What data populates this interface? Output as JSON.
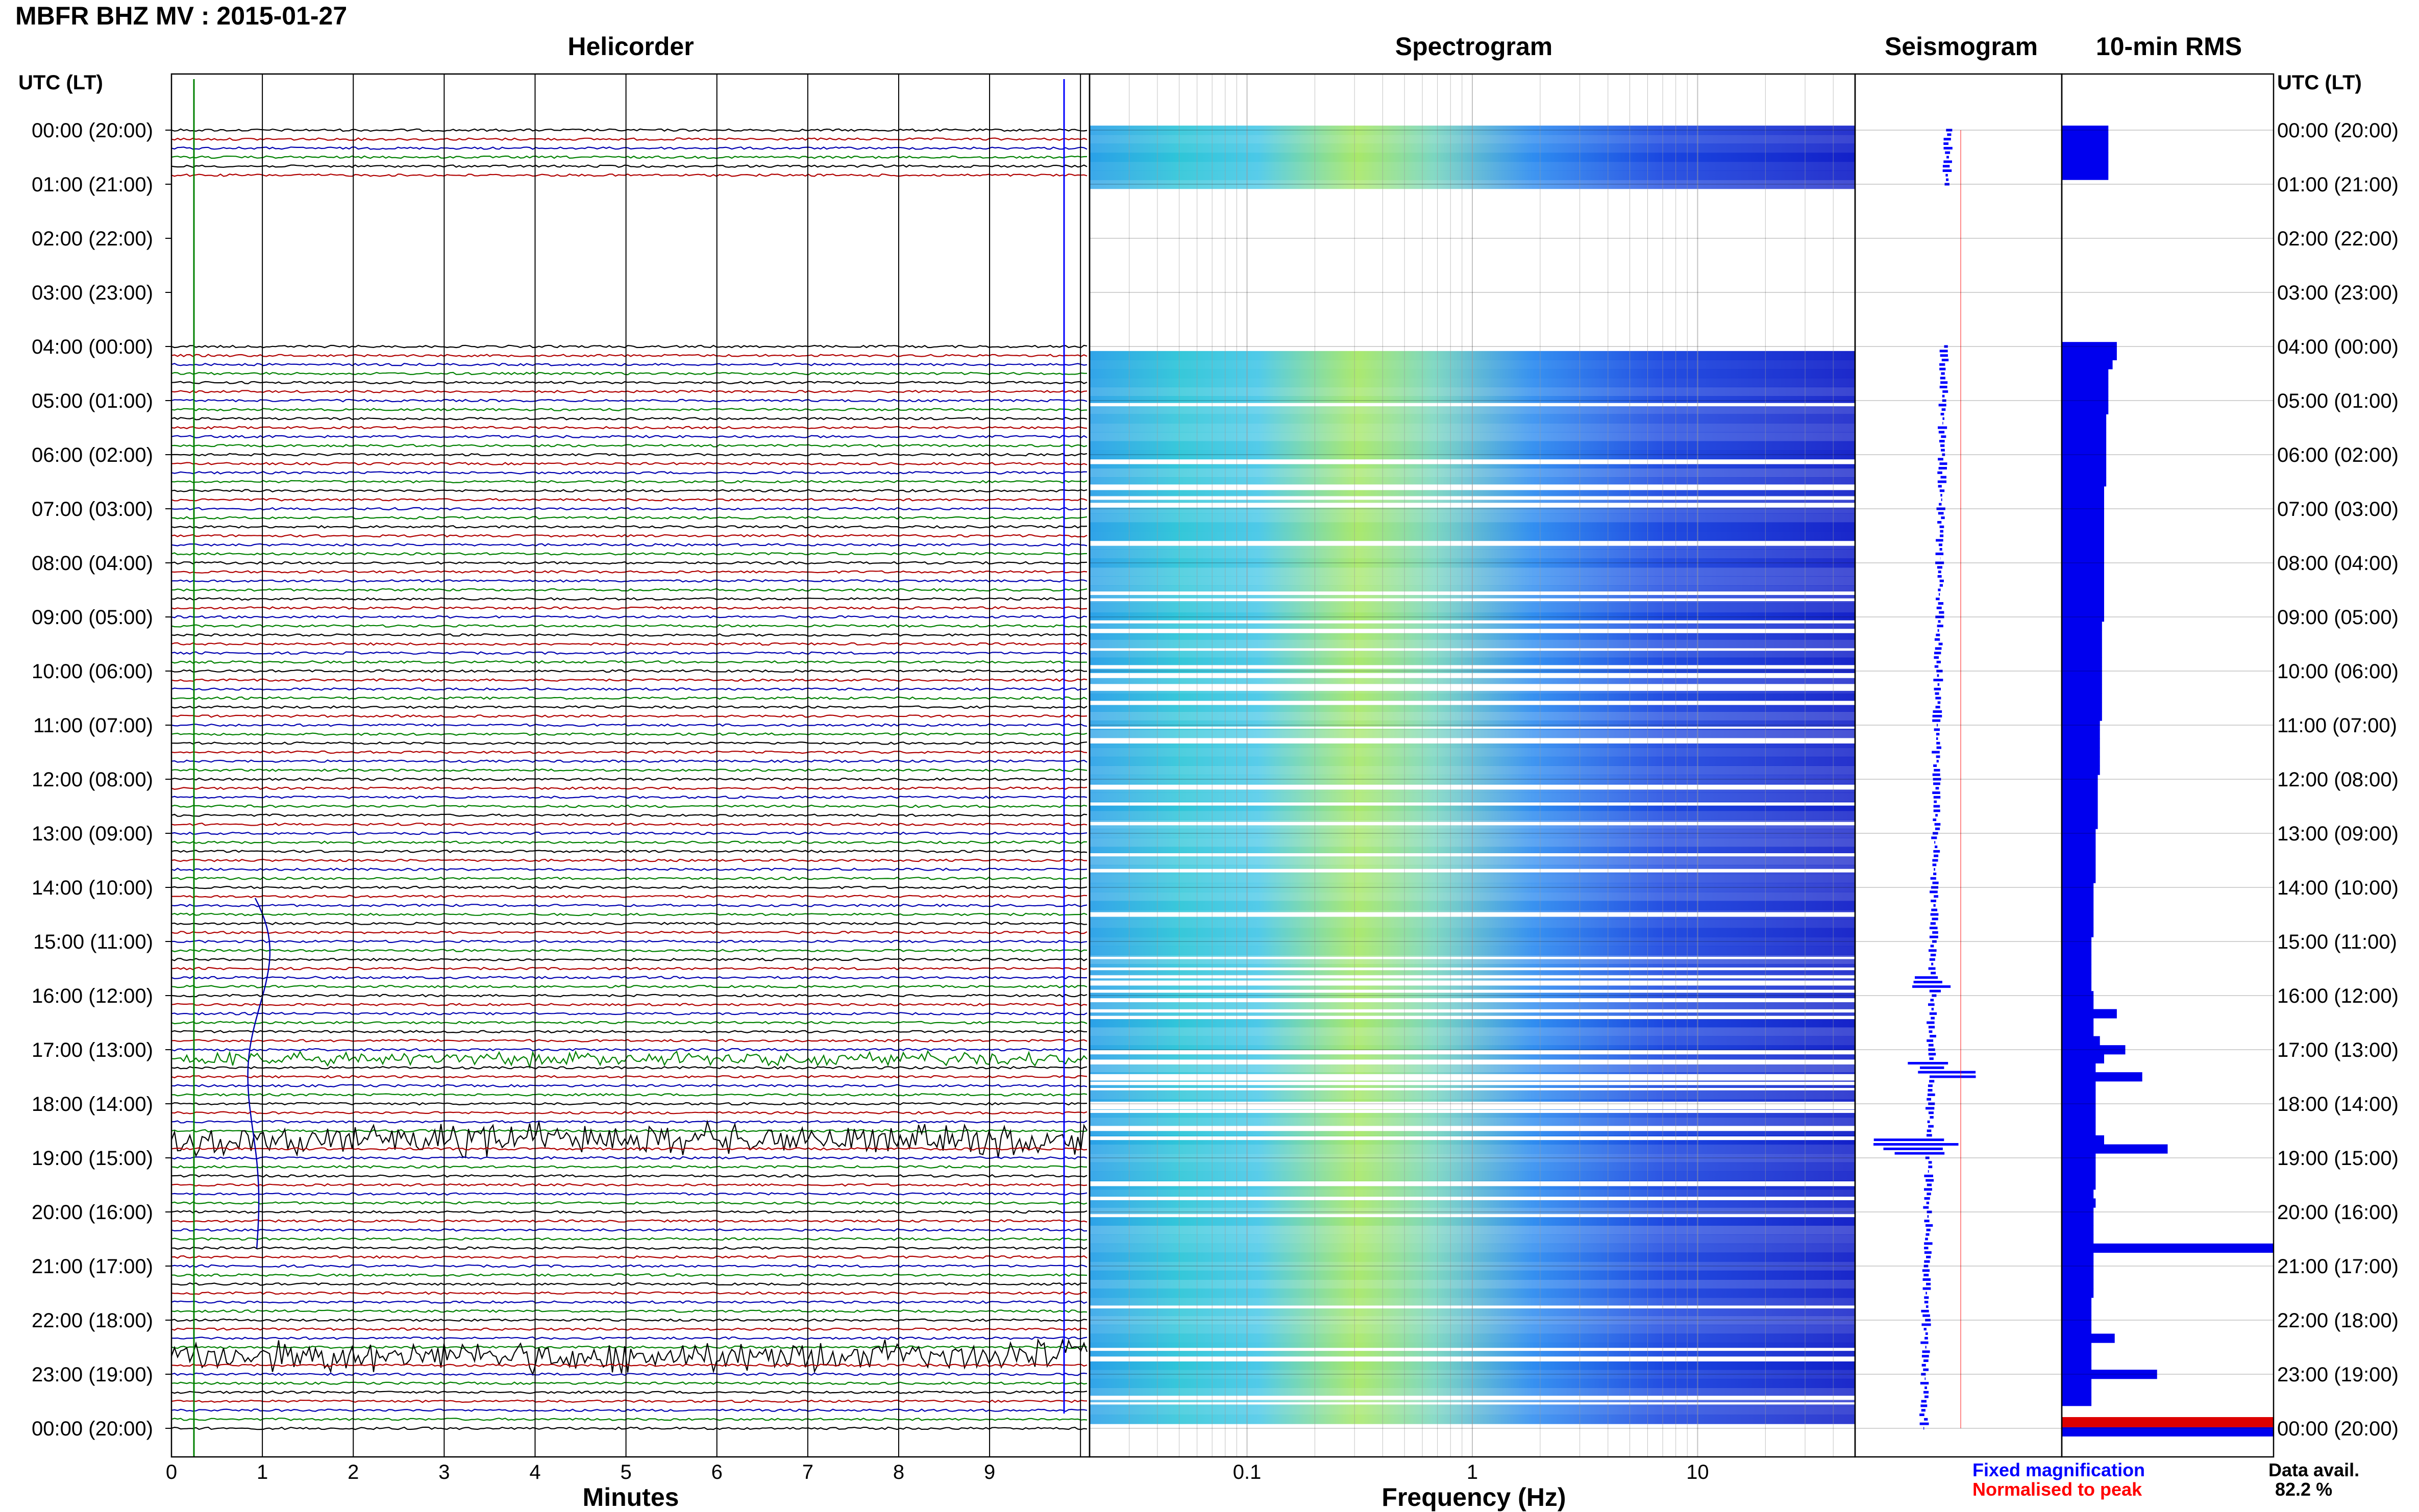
{
  "page": {
    "title": "MBFR BHZ MV : 2015-01-27",
    "panel_titles": {
      "helicorder": "Helicorder",
      "spectrogram": "Spectrogram",
      "seismogram": "Seismogram",
      "rms": "10-min RMS"
    },
    "utc_header_left": "UTC (LT)",
    "utc_header_right": "UTC (LT)",
    "legend": {
      "fixed": "Fixed magnification",
      "normalised": "Normalised to peak",
      "fixed_color": "#0000ff",
      "normalised_color": "#ff0000"
    },
    "data_avail_label": "Data avail.",
    "data_avail_value": "82.2 %",
    "colors": {
      "trace_cycle": [
        "#000000",
        "#b00000",
        "#0000b0",
        "#008000"
      ],
      "spectrogram_low": "#1a1ae6",
      "spectrogram_high": "#c8f05a",
      "rms_bar": "#0000ee",
      "peak_bar": "#dd0000"
    }
  },
  "chart_data": [
    {
      "type": "line",
      "name_panel": "Helicorder",
      "xlabel": "Minutes",
      "xlim": [
        0,
        10
      ],
      "x_ticks": [
        "0",
        "1",
        "2",
        "3",
        "4",
        "5",
        "6",
        "7",
        "8",
        "9"
      ],
      "y_ticks": [
        "00:00 (20:00)",
        "01:00 (21:00)",
        "02:00 (22:00)",
        "03:00 (23:00)",
        "04:00 (00:00)",
        "05:00 (01:00)",
        "06:00 (02:00)",
        "07:00 (03:00)",
        "08:00 (04:00)",
        "09:00 (05:00)",
        "10:00 (06:00)",
        "11:00 (07:00)",
        "12:00 (08:00)",
        "13:00 (09:00)",
        "14:00 (10:00)",
        "15:00 (11:00)",
        "16:00 (12:00)",
        "17:00 (13:00)",
        "18:00 (14:00)",
        "19:00 (15:00)",
        "20:00 (16:00)",
        "21:00 (17:00)",
        "22:00 (18:00)",
        "23:00 (19:00)",
        "00:00 (20:00)"
      ],
      "traces_per_hour": 6,
      "gap_hours": [
        1.0,
        4.0
      ],
      "events": [
        {
          "hour": 17.2,
          "level": "moderate"
        },
        {
          "hour": 18.6,
          "level": "large"
        },
        {
          "hour": 22.7,
          "level": "large"
        }
      ]
    },
    {
      "type": "heatmap",
      "name_panel": "Spectrogram",
      "xlabel": "Frequency (Hz)",
      "x_scale": "log",
      "xlim": [
        0.02,
        50
      ],
      "x_ticks": [
        "0.1",
        "1",
        "10"
      ],
      "gap_hours": [
        1.0,
        4.0
      ],
      "peak_band_hz": [
        0.2,
        0.6
      ]
    },
    {
      "type": "line",
      "name_panel": "Seismogram",
      "series": [
        "Fixed magnification",
        "Normalised to peak"
      ]
    },
    {
      "type": "bar",
      "name_panel": "10-min RMS",
      "orientation": "horizontal",
      "gap_hours": [
        1.0,
        4.0
      ],
      "values": [
        0.22,
        0.22,
        0.22,
        0.22,
        0.22,
        0.22,
        0.0,
        0.0,
        0.0,
        0.0,
        0.0,
        0.0,
        0.0,
        0.0,
        0.0,
        0.0,
        0.0,
        0.0,
        0.0,
        0.0,
        0.0,
        0.0,
        0.0,
        0.0,
        0.26,
        0.26,
        0.24,
        0.22,
        0.22,
        0.22,
        0.22,
        0.22,
        0.21,
        0.21,
        0.21,
        0.21,
        0.21,
        0.21,
        0.21,
        0.21,
        0.2,
        0.2,
        0.2,
        0.2,
        0.2,
        0.2,
        0.2,
        0.2,
        0.2,
        0.2,
        0.2,
        0.2,
        0.2,
        0.2,
        0.2,
        0.19,
        0.19,
        0.19,
        0.19,
        0.19,
        0.19,
        0.19,
        0.19,
        0.19,
        0.19,
        0.19,
        0.18,
        0.18,
        0.18,
        0.18,
        0.18,
        0.18,
        0.17,
        0.17,
        0.17,
        0.17,
        0.17,
        0.17,
        0.16,
        0.16,
        0.16,
        0.16,
        0.16,
        0.16,
        0.15,
        0.15,
        0.15,
        0.15,
        0.15,
        0.15,
        0.14,
        0.14,
        0.14,
        0.14,
        0.14,
        0.14,
        0.15,
        0.15,
        0.26,
        0.15,
        0.15,
        0.18,
        0.3,
        0.2,
        0.16,
        0.38,
        0.16,
        0.16,
        0.16,
        0.16,
        0.16,
        0.16,
        0.2,
        0.5,
        0.16,
        0.16,
        0.16,
        0.16,
        0.15,
        0.16,
        0.15,
        0.15,
        0.15,
        0.15,
        1.0,
        0.15,
        0.15,
        0.15,
        0.15,
        0.15,
        0.14,
        0.14,
        0.14,
        0.14,
        0.25,
        0.14,
        0.14,
        0.14,
        0.45,
        0.14,
        0.14,
        0.14
      ]
    }
  ]
}
